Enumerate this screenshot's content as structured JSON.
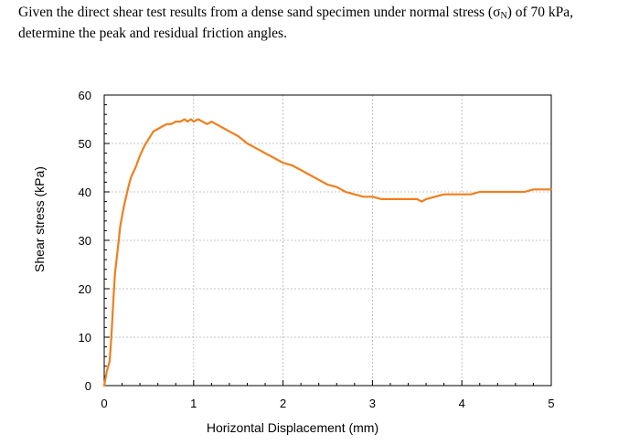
{
  "question": {
    "line1_before": "Given the direct shear test results from a dense sand specimen under normal stress (σ",
    "line1_sub": "N",
    "line1_after": ") of 70 kPa,",
    "line2": "determine the peak and residual friction angles."
  },
  "chart_data": {
    "type": "line",
    "title": "",
    "xlabel": "Horizontal Displacement (mm)",
    "ylabel": "Shear stress (kPa)",
    "xlim": [
      0,
      5
    ],
    "ylim": [
      0,
      60
    ],
    "xticks": [
      "0",
      "1",
      "2",
      "3",
      "4",
      "5"
    ],
    "yticks": [
      "0",
      "10",
      "20",
      "30",
      "40",
      "50",
      "60"
    ],
    "grid": true,
    "series": [
      {
        "color": "#F07F1E",
        "x": [
          0,
          0.03,
          0.06,
          0.08,
          0.1,
          0.12,
          0.15,
          0.18,
          0.22,
          0.27,
          0.3,
          0.35,
          0.4,
          0.45,
          0.5,
          0.55,
          0.6,
          0.65,
          0.7,
          0.75,
          0.8,
          0.85,
          0.9,
          0.93,
          0.97,
          1.0,
          1.05,
          1.1,
          1.15,
          1.2,
          1.25,
          1.3,
          1.35,
          1.4,
          1.5,
          1.6,
          1.7,
          1.8,
          1.9,
          2.0,
          2.1,
          2.2,
          2.3,
          2.4,
          2.5,
          2.6,
          2.7,
          2.8,
          2.9,
          3.0,
          3.1,
          3.2,
          3.3,
          3.4,
          3.5,
          3.55,
          3.6,
          3.7,
          3.8,
          3.9,
          4.0,
          4.1,
          4.2,
          4.3,
          4.4,
          4.5,
          4.6,
          4.7,
          4.8,
          4.9,
          5.0
        ],
        "y": [
          0,
          3,
          5,
          10,
          17,
          23,
          28,
          33,
          37,
          41,
          43,
          45,
          47.5,
          49.5,
          51,
          52.5,
          53,
          53.5,
          54,
          54,
          54.5,
          54.5,
          55,
          54.5,
          55,
          54.5,
          55,
          54.5,
          54,
          54.5,
          54,
          53.5,
          53,
          52.5,
          51.5,
          50,
          49,
          48,
          47,
          46,
          45.5,
          44.5,
          43.5,
          42.5,
          41.5,
          41,
          40,
          39.5,
          39,
          39,
          38.5,
          38.5,
          38.5,
          38.5,
          38.5,
          38,
          38.5,
          39,
          39.5,
          39.5,
          39.5,
          39.5,
          40,
          40,
          40,
          40,
          40,
          40,
          40.5,
          40.5,
          40.5
        ]
      }
    ]
  }
}
